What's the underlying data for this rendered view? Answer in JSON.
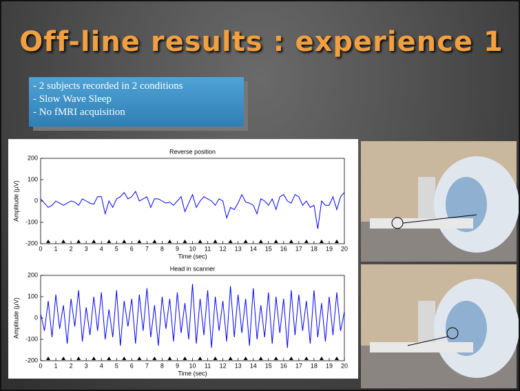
{
  "slide": {
    "title": "Off-line results : experience 1",
    "bullets": [
      "- 2 subjects recorded in 2 conditions",
      "- Slow Wave Sleep",
      "- No fMRI acquisition"
    ]
  },
  "chart_data": [
    {
      "type": "line",
      "title": "Reverse position",
      "x_label": "Time (sec)",
      "y_label": "Amplitude (µV)",
      "color": "#0000ff",
      "x": [
        0,
        0.25,
        0.5,
        0.75,
        1,
        1.25,
        1.5,
        1.75,
        2,
        2.25,
        2.5,
        2.75,
        3,
        3.25,
        3.5,
        3.75,
        4,
        4.25,
        4.5,
        4.75,
        5,
        5.25,
        5.5,
        5.75,
        6,
        6.25,
        6.5,
        6.75,
        7,
        7.25,
        7.5,
        7.75,
        8,
        8.25,
        8.5,
        8.75,
        9,
        9.25,
        9.5,
        9.75,
        10,
        10.25,
        10.5,
        10.75,
        11,
        11.25,
        11.5,
        11.75,
        12,
        12.25,
        12.5,
        12.75,
        13,
        13.25,
        13.5,
        13.75,
        14,
        14.25,
        14.5,
        14.75,
        15,
        15.25,
        15.5,
        15.75,
        16,
        16.25,
        16.5,
        16.75,
        17,
        17.25,
        17.5,
        17.75,
        18,
        18.25,
        18.5,
        18.75,
        19,
        19.25,
        19.5,
        19.75,
        20
      ],
      "values": [
        10,
        -10,
        -30,
        -20,
        0,
        -10,
        -20,
        -10,
        0,
        -5,
        -20,
        10,
        0,
        -10,
        -15,
        20,
        20,
        -60,
        0,
        -30,
        10,
        20,
        40,
        10,
        20,
        45,
        0,
        10,
        20,
        -30,
        10,
        10,
        0,
        -10,
        -5,
        -20,
        0,
        20,
        -50,
        -10,
        30,
        -30,
        0,
        20,
        10,
        0,
        -20,
        10,
        0,
        -80,
        -30,
        -40,
        -10,
        30,
        -5,
        -10,
        -20,
        -60,
        10,
        0,
        -20,
        10,
        -40,
        20,
        30,
        0,
        -10,
        30,
        20,
        -20,
        0,
        -30,
        -20,
        -130,
        0,
        -20,
        -20,
        20,
        -40,
        20,
        40
      ],
      "markers": [
        0.5,
        1.5,
        2.5,
        3.5,
        4.5,
        5.5,
        6.5,
        7.5,
        8.5,
        9.5,
        10.5,
        11.5,
        12.5,
        13.5,
        14.5,
        15.5,
        16.5,
        17.5,
        18.5,
        19.5
      ],
      "xlim": [
        0,
        20
      ],
      "xticks": [
        0,
        1,
        2,
        3,
        4,
        5,
        6,
        7,
        8,
        9,
        10,
        11,
        12,
        13,
        14,
        15,
        16,
        17,
        18,
        19,
        20
      ],
      "ylim": [
        -200,
        200
      ],
      "yticks": [
        -200,
        -100,
        0,
        100,
        200
      ]
    },
    {
      "type": "line",
      "title": "Head in scanner",
      "x_label": "Time (sec)",
      "y_label": "Amplitude (µV)",
      "color": "#0000ff",
      "x": [
        0,
        0.25,
        0.5,
        0.75,
        1,
        1.25,
        1.5,
        1.75,
        2,
        2.25,
        2.5,
        2.75,
        3,
        3.25,
        3.5,
        3.75,
        4,
        4.25,
        4.5,
        4.75,
        5,
        5.25,
        5.5,
        5.75,
        6,
        6.25,
        6.5,
        6.75,
        7,
        7.25,
        7.5,
        7.75,
        8,
        8.25,
        8.5,
        8.75,
        9,
        9.25,
        9.5,
        9.75,
        10,
        10.25,
        10.5,
        10.75,
        11,
        11.25,
        11.5,
        11.75,
        12,
        12.25,
        12.5,
        12.75,
        13,
        13.25,
        13.5,
        13.75,
        14,
        14.25,
        14.5,
        14.75,
        15,
        15.25,
        15.5,
        15.75,
        16,
        16.25,
        16.5,
        16.75,
        17,
        17.25,
        17.5,
        17.75,
        18,
        18.25,
        18.5,
        18.75,
        19,
        19.25,
        19.5,
        19.75,
        20
      ],
      "values": [
        20,
        -60,
        80,
        -90,
        110,
        -50,
        60,
        -120,
        90,
        -40,
        130,
        -110,
        50,
        -80,
        100,
        -60,
        120,
        -100,
        40,
        -90,
        130,
        -130,
        80,
        -40,
        90,
        -120,
        110,
        -60,
        140,
        -90,
        60,
        -130,
        100,
        -50,
        90,
        -110,
        120,
        -70,
        70,
        -100,
        160,
        -120,
        90,
        -80,
        130,
        -140,
        100,
        -60,
        80,
        -110,
        150,
        -90,
        110,
        -70,
        90,
        -130,
        140,
        -100,
        60,
        -90,
        120,
        -120,
        100,
        -70,
        90,
        -140,
        130,
        -80,
        110,
        -60,
        80,
        -120,
        130,
        -90,
        70,
        -110,
        100,
        -80,
        120,
        -60,
        30
      ],
      "markers": [
        0.5,
        1.5,
        2.5,
        3.5,
        4.5,
        5.5,
        6.5,
        7.5,
        8.5,
        9.5,
        10.5,
        11.5,
        12.5,
        13.5,
        14.5,
        15.5,
        16.5,
        17.5,
        18.5,
        19.5
      ],
      "xlim": [
        0,
        20
      ],
      "xticks": [
        0,
        1,
        2,
        3,
        4,
        5,
        6,
        7,
        8,
        9,
        10,
        11,
        12,
        13,
        14,
        15,
        16,
        17,
        18,
        19,
        20
      ],
      "ylim": [
        -200,
        200
      ],
      "yticks": [
        -200,
        -100,
        0,
        100,
        200
      ]
    }
  ]
}
